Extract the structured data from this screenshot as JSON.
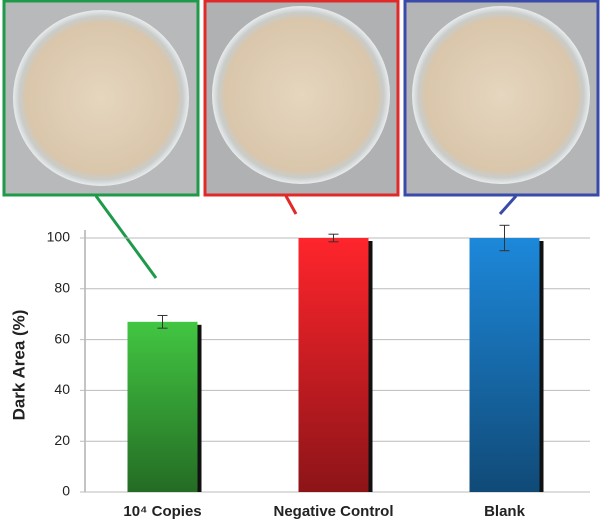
{
  "chart_data": {
    "type": "bar",
    "y_label": "Dark Area (%)",
    "categories": [
      "10⁴ Copies",
      "Negative Control",
      "Blank"
    ],
    "values": [
      67,
      100,
      100
    ],
    "errors": [
      2.5,
      1.5,
      5
    ],
    "colors": [
      "#3cb43c",
      "#ea2228",
      "#1a7cc6"
    ],
    "ylim": [
      0,
      100
    ],
    "yticks": [
      0,
      20,
      40,
      60,
      80,
      100
    ],
    "grid": true
  }
}
